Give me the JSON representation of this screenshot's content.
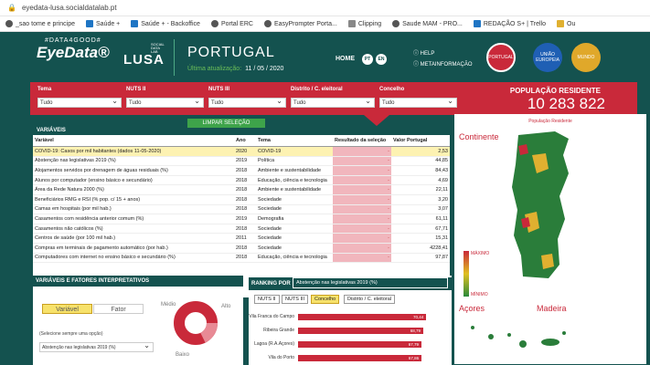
{
  "browser": {
    "url": "eyedata-lusa.socialdatalab.pt",
    "bookmarks": [
      "_sao tome e principe",
      "Saúde +",
      "Saúde + - Backoffice",
      "Portal ERC",
      "EasyPrompter Porta...",
      "Clipping",
      "Saude MAM - PRO...",
      "REDAÇÃO S+ | Trello",
      "Ou"
    ]
  },
  "header": {
    "logo_top": "#DATA4GOOD#",
    "logo_main": "EyeData®",
    "lusa_small": "SOCIAL DATA LAB",
    "lusa_word": "LUSA",
    "title": "PORTUGAL",
    "update_label": "Última atualização:",
    "update_date": "11 / 05 / 2020",
    "home": "HOME",
    "lang_pt": "PT",
    "lang_en": "EN",
    "help": "HELP",
    "meta": "METAINFORMAÇÃO",
    "btn_portugal": "PORTUGAL",
    "btn_ue": "UNIÃO EUROPEIA",
    "btn_mundo": "MUNDO",
    "colors": {
      "bg": "#14524f",
      "red": "#c9293a",
      "blue": "#1f5fb4",
      "gold": "#e0a82a"
    }
  },
  "filters": {
    "labels": [
      "Tema",
      "NUTS II",
      "NUTS III",
      "Distrito / C. eleitoral",
      "Concelho"
    ],
    "values": [
      "Tudo",
      "Tudo",
      "Tudo",
      "Tudo",
      "Tudo"
    ],
    "pop_label": "POPULAÇÃO RESIDENTE",
    "pop_value": "10 283 822"
  },
  "variables": {
    "heading": "VARIÁVEIS",
    "clear_button": "LIMPAR SELEÇÃO",
    "columns": [
      "Variável",
      "Ano",
      "Tema",
      "Resultado da seleção",
      "Valor Portugal"
    ],
    "rows": [
      [
        "COVID-19: Casos por mil habitantes (dados 11-05-2020)",
        "2020",
        "COVID-19",
        "-",
        "2,53"
      ],
      [
        "Abstenção nas legislativas 2019 (%)",
        "2019",
        "Política",
        "-",
        "44,85"
      ],
      [
        "Alojamentos servidos por drenagem de águas residuais (%)",
        "2018",
        "Ambiente e sustentabilidade",
        "-",
        "84,43"
      ],
      [
        "Alunos por computador (ensino básico e secundário)",
        "2018",
        "Educação, ciência e tecnologia",
        "-",
        "4,69"
      ],
      [
        "Área da Rede Natura 2000 (%)",
        "2018",
        "Ambiente e sustentabilidade",
        "-",
        "22,11"
      ],
      [
        "Beneficiários RMG e RSI (% pop. c/ 15 + anos)",
        "2018",
        "Sociedade",
        "-",
        "3,20"
      ],
      [
        "Camas em hospitais (por mil hab.)",
        "2018",
        "Sociedade",
        "-",
        "3,07"
      ],
      [
        "Casamentos com residência anterior comum (%)",
        "2019",
        "Demografia",
        "-",
        "61,11"
      ],
      [
        "Casamentos não católicos (%)",
        "2018",
        "Sociedade",
        "-",
        "67,71"
      ],
      [
        "Centros de saúde (por 100 mil hab.)",
        "2011",
        "Sociedade",
        "-",
        "15,31"
      ],
      [
        "Compras em terminais de pagamento automático (por hab.)",
        "2018",
        "Sociedade",
        "-",
        "4228,41"
      ],
      [
        "Computadores com internet no ensino básico e secundário (%)",
        "2018",
        "Educação, ciência e tecnologia",
        "-",
        "97,87"
      ]
    ]
  },
  "map": {
    "title": "População Residente",
    "continente": "Continente",
    "acores": "Açores",
    "madeira": "Madeira",
    "max": "MÁXIMO",
    "min": "MÍNIMO"
  },
  "factors": {
    "heading": "VARIÁVEIS E FATORES INTERPRETATIVOS",
    "tab_var": "Variável",
    "tab_fator": "Fator",
    "hint": "(Selecione sempre uma opção)",
    "selected": "Abstenção nas legislativas 2019 (%)",
    "medio": "Médio",
    "alto": "Alto",
    "baixo": "Baixo"
  },
  "ranking": {
    "heading": "RANKING POR",
    "selected": "Abstenção nas legislativas 2019 (%)",
    "tabs": [
      "NUTS II",
      "NUTS III",
      "Concelho",
      "Distrito / C. eleitoral"
    ],
    "items": [
      {
        "name": "Vila Franca do Campo",
        "value": "70,44",
        "v": 70.44
      },
      {
        "name": "Ribeira Grande",
        "value": "68,79",
        "v": 68.79
      },
      {
        "name": "Lagoa (R.A.Açores)",
        "value": "67,79",
        "v": 67.79
      },
      {
        "name": "Vila do Porto",
        "value": "67,86",
        "v": 67.86
      }
    ]
  }
}
